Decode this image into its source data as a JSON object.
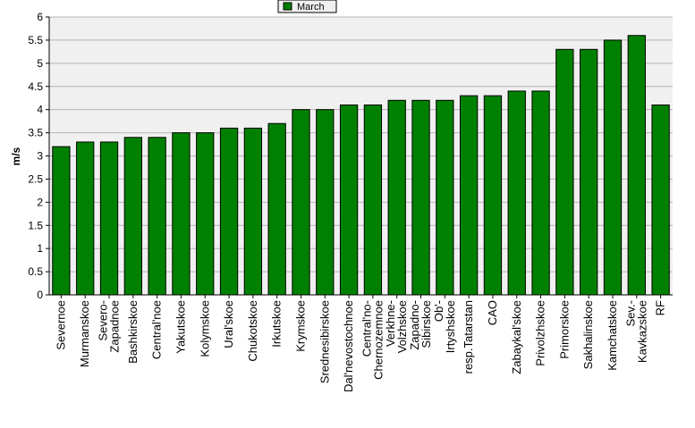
{
  "chart_data": {
    "type": "bar",
    "ylabel": "m/s",
    "ylim": [
      0,
      6
    ],
    "yticks": [
      "0",
      "0.5",
      "1",
      "1.5",
      "2",
      "2.5",
      "3",
      "3.5",
      "4",
      "4.5",
      "5",
      "5.5",
      "6"
    ],
    "grid": true,
    "legend_position": "top-center",
    "colors": {
      "bar": "#008000",
      "bar_edge": "#000000",
      "plot_bg": "#f0f0f0",
      "grid": "#b4b4b4"
    },
    "series": [
      {
        "name": "March",
        "values": [
          3.2,
          3.3,
          3.3,
          3.4,
          3.4,
          3.5,
          3.5,
          3.6,
          3.6,
          3.7,
          4.0,
          4.0,
          4.1,
          4.1,
          4.2,
          4.2,
          4.2,
          4.3,
          4.3,
          4.4,
          4.4,
          5.3,
          5.3,
          5.5,
          5.6,
          4.1
        ]
      }
    ],
    "categories": [
      [
        "Severnoe"
      ],
      [
        "Murmanskoe"
      ],
      [
        "Severo-",
        "Zapadnoe"
      ],
      [
        "Bashkirskoe"
      ],
      [
        "Central'noe"
      ],
      [
        "Yakutskoe"
      ],
      [
        "Kolymskoe"
      ],
      [
        "Ural'skoe"
      ],
      [
        "Chukotskoe"
      ],
      [
        "Irkutskoe"
      ],
      [
        "Krymskoe"
      ],
      [
        "Srednesibirskoe"
      ],
      [
        "Dal'nevostochnoe"
      ],
      [
        "Central'no-",
        "Chernozemnoe"
      ],
      [
        "Verkhne-",
        "Volzhskoe"
      ],
      [
        "Zapadno-",
        "Sibirskoe"
      ],
      [
        "Ob'-",
        "Irtyshskoe"
      ],
      [
        "resp.Tatarstan"
      ],
      [
        "CAO"
      ],
      [
        "Zabaykal'skoe"
      ],
      [
        "Privolzhskoe"
      ],
      [
        "Primorskoe"
      ],
      [
        "Sakhalinskoe"
      ],
      [
        "Kamchatskoe"
      ],
      [
        "Sev.-",
        "Kavkazskoe"
      ],
      [
        "RF"
      ]
    ]
  }
}
